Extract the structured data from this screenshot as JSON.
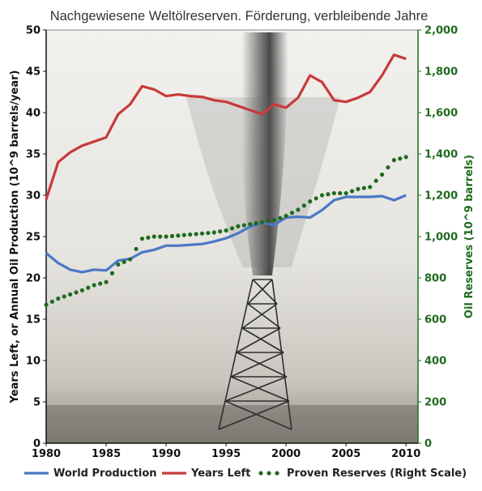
{
  "chart_data": {
    "type": "line",
    "title": "Nachgewiesene Weltölreserven. Förderung, verbleibende Jahre",
    "xlabel": "",
    "ylabel": "Years Left, or Annual Oil Production (10^9 barrels/year)",
    "y2label": "Oil Reserves (10^9 barrels)",
    "xlim": [
      1980,
      2011
    ],
    "ylim": [
      0,
      50
    ],
    "y2lim": [
      0,
      2000
    ],
    "xticks": [
      "1980",
      "1985",
      "1990",
      "1995",
      "2000",
      "2005",
      "2010"
    ],
    "yticks": [
      "0",
      "5",
      "10",
      "15",
      "20",
      "25",
      "30",
      "35",
      "40",
      "45",
      "50"
    ],
    "y2ticks": [
      "0",
      "200",
      "400",
      "600",
      "800",
      "1,000",
      "1,200",
      "1,400",
      "1,600",
      "1,800",
      "2,000"
    ],
    "grid": false,
    "legend_position": "bottom",
    "x": [
      1980,
      1981,
      1982,
      1983,
      1984,
      1985,
      1986,
      1987,
      1988,
      1989,
      1990,
      1991,
      1992,
      1993,
      1994,
      1995,
      1996,
      1997,
      1998,
      1999,
      2000,
      2001,
      2002,
      2003,
      2004,
      2005,
      2006,
      2007,
      2008,
      2009,
      2010
    ],
    "series": [
      {
        "name": "World Production",
        "axis": "left",
        "style": "solid",
        "color": "#4a78c4",
        "values": [
          23.0,
          21.8,
          21.0,
          20.7,
          21.0,
          20.9,
          22.1,
          22.3,
          23.1,
          23.4,
          23.9,
          23.9,
          24.0,
          24.1,
          24.4,
          24.8,
          25.4,
          26.2,
          26.7,
          26.4,
          27.3,
          27.4,
          27.3,
          28.2,
          29.4,
          29.8,
          29.8,
          29.8,
          29.9,
          29.4,
          30.0
        ]
      },
      {
        "name": "Years Left",
        "axis": "left",
        "style": "solid",
        "color": "#c83a3a",
        "values": [
          29.5,
          34.0,
          35.2,
          36.0,
          36.5,
          37.0,
          39.8,
          41.0,
          43.2,
          42.8,
          42.0,
          42.2,
          42.0,
          41.9,
          41.5,
          41.3,
          40.8,
          40.3,
          39.8,
          41.0,
          40.6,
          41.8,
          44.5,
          43.7,
          41.5,
          41.3,
          41.8,
          42.5,
          44.5,
          47.0,
          46.5
        ]
      },
      {
        "name": "Proven Reserves (Right Scale)",
        "axis": "right",
        "style": "dotted",
        "color": "#1f6b1f",
        "values": [
          670,
          700,
          720,
          740,
          765,
          780,
          865,
          890,
          990,
          1000,
          1000,
          1005,
          1010,
          1015,
          1020,
          1030,
          1050,
          1060,
          1070,
          1080,
          1100,
          1130,
          1170,
          1200,
          1210,
          1210,
          1230,
          1240,
          1300,
          1370,
          1385
        ]
      }
    ]
  }
}
